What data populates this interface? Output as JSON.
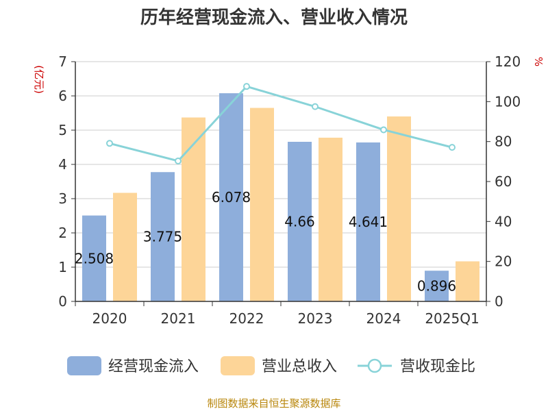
{
  "chart_data": {
    "type": "bar",
    "title": "历年经营现金流入、营业收入情况",
    "categories": [
      "2020",
      "2021",
      "2022",
      "2023",
      "2024",
      "2025Q1"
    ],
    "left_axis": {
      "unit": "(亿元)",
      "ylim": [
        0,
        7
      ],
      "ticks": [
        0,
        1,
        2,
        3,
        4,
        5,
        6,
        7
      ]
    },
    "right_axis": {
      "unit": "%",
      "ylim": [
        0,
        120
      ],
      "ticks": [
        0,
        20,
        40,
        60,
        80,
        100,
        120
      ]
    },
    "grid": true,
    "legend_position": "bottom",
    "series": [
      {
        "name": "经营现金流入",
        "type": "bar",
        "axis": "left",
        "color": "#8eaedb",
        "values": [
          2.508,
          3.775,
          6.078,
          4.66,
          4.641,
          0.896
        ],
        "labels": [
          "2.508",
          "3.775",
          "6.078",
          "4.66",
          "4.641",
          "0.896"
        ]
      },
      {
        "name": "营业总收入",
        "type": "bar",
        "axis": "left",
        "color": "#fdd598",
        "values": [
          3.17,
          5.37,
          5.65,
          4.78,
          5.4,
          1.17
        ]
      },
      {
        "name": "营收现金比",
        "type": "line",
        "axis": "right",
        "color": "#88d3d8",
        "values": [
          79.1,
          70.3,
          107.6,
          97.5,
          85.9,
          77.1
        ]
      }
    ],
    "source": "制图数据来自恒生聚源数据库"
  }
}
